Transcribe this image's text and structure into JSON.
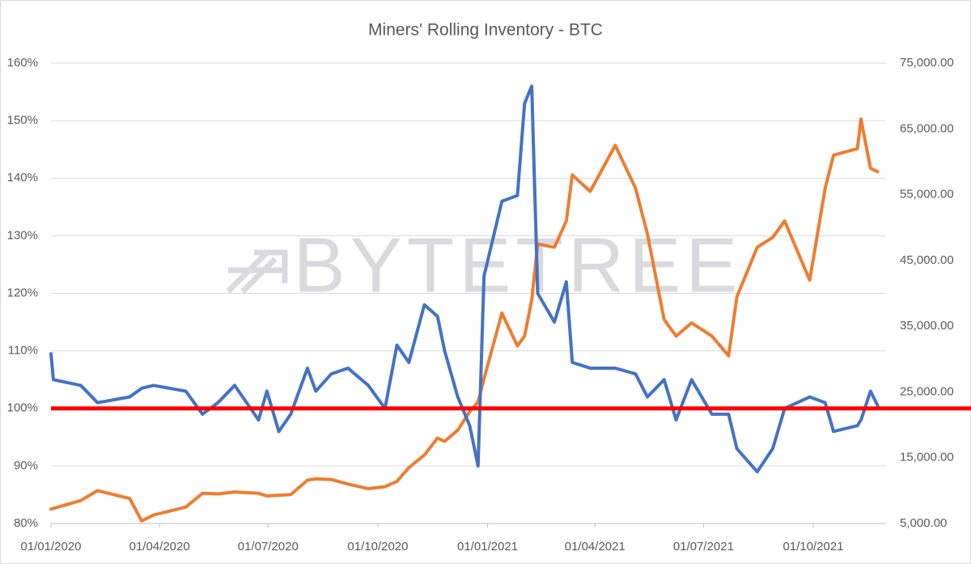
{
  "chart_data": {
    "type": "line",
    "title": "Miners' Rolling Inventory - BTC",
    "watermark": "BYTETREE",
    "x": [
      "01/01/2020",
      "03/01/2020",
      "26/01/2020",
      "09/02/2020",
      "07/03/2020",
      "17/03/2020",
      "27/03/2020",
      "23/04/2020",
      "07/05/2020",
      "20/05/2020",
      "03/06/2020",
      "23/06/2020",
      "30/06/2020",
      "10/07/2020",
      "20/07/2020",
      "03/08/2020",
      "10/08/2020",
      "23/08/2020",
      "06/09/2020",
      "23/09/2020",
      "07/10/2020",
      "17/10/2020",
      "27/10/2020",
      "09/11/2020",
      "20/11/2020",
      "26/11/2020",
      "07/12/2020",
      "17/12/2020",
      "24/12/2020",
      "29/12/2020",
      "13/01/2021",
      "26/01/2021",
      "01/02/2021",
      "07/02/2021",
      "12/02/2021",
      "26/02/2021",
      "08/03/2021",
      "13/03/2021",
      "28/03/2021",
      "18/04/2021",
      "05/05/2021",
      "15/05/2021",
      "29/05/2021",
      "08/06/2021",
      "21/06/2021",
      "08/07/2021",
      "22/07/2021",
      "29/07/2021",
      "15/08/2021",
      "28/08/2021",
      "07/09/2021",
      "28/09/2021",
      "11/10/2021",
      "18/10/2021",
      "07/11/2021",
      "10/11/2021",
      "18/11/2021",
      "24/11/2021"
    ],
    "series": [
      {
        "color": "#ed7d31",
        "axis": "y2",
        "values": [
          7200,
          7300,
          8500,
          10000,
          8800,
          5400,
          6300,
          7500,
          9600,
          9500,
          9800,
          9600,
          9200,
          9300,
          9400,
          11600,
          11800,
          11700,
          11000,
          10300,
          10600,
          11400,
          13500,
          15400,
          18000,
          17500,
          19200,
          22000,
          23500,
          27000,
          37000,
          32000,
          33500,
          39000,
          47500,
          47000,
          51000,
          58000,
          55500,
          62500,
          56000,
          49000,
          36000,
          33500,
          35500,
          33500,
          30500,
          39500,
          47000,
          48500,
          51000,
          42000,
          56000,
          61000,
          62000,
          66500,
          59000,
          58500
        ]
      },
      {
        "color": "#4472c4",
        "values": [
          109.5,
          105,
          104,
          101,
          102,
          103.5,
          104,
          103,
          99,
          101,
          104,
          98,
          103,
          96,
          99,
          107,
          103,
          106,
          107,
          104,
          100,
          111,
          108,
          118,
          116,
          110,
          102,
          97,
          90,
          123,
          136,
          137,
          153,
          156,
          120,
          115,
          122,
          108,
          107,
          107,
          106,
          102,
          105,
          98,
          105,
          99,
          99,
          93,
          89,
          93,
          100,
          102,
          101,
          96,
          97,
          98,
          103,
          100.5
        ]
      }
    ],
    "hline": {
      "value": 100,
      "color": "#ff0000"
    },
    "xlim": [
      "01/01/2020",
      "01/12/2021"
    ],
    "xticks": [
      "01/01/2020",
      "01/04/2020",
      "01/07/2020",
      "01/10/2020",
      "01/01/2021",
      "01/04/2021",
      "01/07/2021",
      "01/10/2021"
    ],
    "ylim": [
      80,
      160
    ],
    "yticks": [
      {
        "value": 80,
        "label": "80%"
      },
      {
        "value": 90,
        "label": "90%"
      },
      {
        "value": 100,
        "label": "100%"
      },
      {
        "value": 110,
        "label": "110%"
      },
      {
        "value": 120,
        "label": "120%"
      },
      {
        "value": 130,
        "label": "130%"
      },
      {
        "value": 140,
        "label": "140%"
      },
      {
        "value": 150,
        "label": "150%"
      },
      {
        "value": 160,
        "label": "160%"
      }
    ],
    "y2lim": [
      5000,
      75000
    ],
    "y2ticks": [
      {
        "value": 5000,
        "label": "5,000.00"
      },
      {
        "value": 15000,
        "label": "15,000.00"
      },
      {
        "value": 25000,
        "label": "25,000.00"
      },
      {
        "value": 35000,
        "label": "35,000.00"
      },
      {
        "value": 45000,
        "label": "45,000.00"
      },
      {
        "value": 55000,
        "label": "55,000.00"
      },
      {
        "value": 65000,
        "label": "65,000.00"
      },
      {
        "value": 75000,
        "label": "75,000.00"
      }
    ],
    "grid": true
  }
}
